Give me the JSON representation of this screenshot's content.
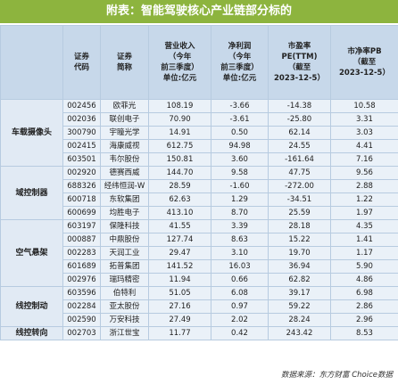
{
  "header": {
    "title": "附表：智能驾驶核心产业链部分标的"
  },
  "table": {
    "columns": [
      [
        "证券",
        "代码"
      ],
      [
        "证券",
        "简称"
      ],
      [
        "营业收入",
        "（今年",
        "前三季度）",
        "单位:亿元"
      ],
      [
        "净利润",
        "（今年",
        "前三季度）",
        "单位:亿元"
      ],
      [
        "市盈率",
        "PE(TTM)",
        "（截至",
        "2023-12-5）"
      ],
      [
        "市净率PB",
        "（截至",
        "2023-12-5）"
      ]
    ],
    "groups": [
      {
        "name": "车载摄像头",
        "rows": [
          [
            "002456",
            "欧菲光",
            "108.19",
            "-3.66",
            "-14.38",
            "10.58"
          ],
          [
            "002036",
            "联创电子",
            "70.90",
            "-3.61",
            "-25.80",
            "3.31"
          ],
          [
            "300790",
            "宇瞳光学",
            "14.91",
            "0.50",
            "62.14",
            "3.03"
          ],
          [
            "002415",
            "海康威视",
            "612.75",
            "94.98",
            "24.55",
            "4.41"
          ],
          [
            "603501",
            "韦尔股份",
            "150.81",
            "3.60",
            "-161.64",
            "7.16"
          ]
        ]
      },
      {
        "name": "域控制器",
        "rows": [
          [
            "002920",
            "德赛西威",
            "144.70",
            "9.58",
            "47.75",
            "9.56"
          ],
          [
            "688326",
            "经纬恒润-W",
            "28.59",
            "-1.60",
            "-272.00",
            "2.88"
          ],
          [
            "600718",
            "东软集团",
            "62.63",
            "1.29",
            "-34.51",
            "1.22"
          ],
          [
            "600699",
            "均胜电子",
            "413.10",
            "8.70",
            "25.59",
            "1.97"
          ]
        ]
      },
      {
        "name": "空气悬架",
        "rows": [
          [
            "603197",
            "保隆科技",
            "41.55",
            "3.39",
            "28.18",
            "4.35"
          ],
          [
            "000887",
            "中鼎股份",
            "127.74",
            "8.63",
            "15.22",
            "1.41"
          ],
          [
            "002283",
            "天润工业",
            "29.47",
            "3.10",
            "19.70",
            "1.17"
          ],
          [
            "601689",
            "拓普集团",
            "141.52",
            "16.03",
            "36.94",
            "5.90"
          ],
          [
            "002976",
            "瑞玛精密",
            "11.94",
            "0.66",
            "62.82",
            "4.86"
          ]
        ]
      },
      {
        "name": "线控制动",
        "rows": [
          [
            "603596",
            "伯特利",
            "51.05",
            "6.08",
            "39.17",
            "6.98"
          ],
          [
            "002284",
            "亚太股份",
            "27.16",
            "0.97",
            "59.22",
            "2.86"
          ],
          [
            "002590",
            "万安科技",
            "27.49",
            "2.02",
            "28.24",
            "2.96"
          ]
        ]
      },
      {
        "name": "线控转向",
        "rows": [
          [
            "002703",
            "浙江世宝",
            "11.77",
            "0.42",
            "243.42",
            "8.53"
          ]
        ]
      }
    ]
  },
  "footer": {
    "source": "数据来源：东方财富 Choice数据"
  }
}
